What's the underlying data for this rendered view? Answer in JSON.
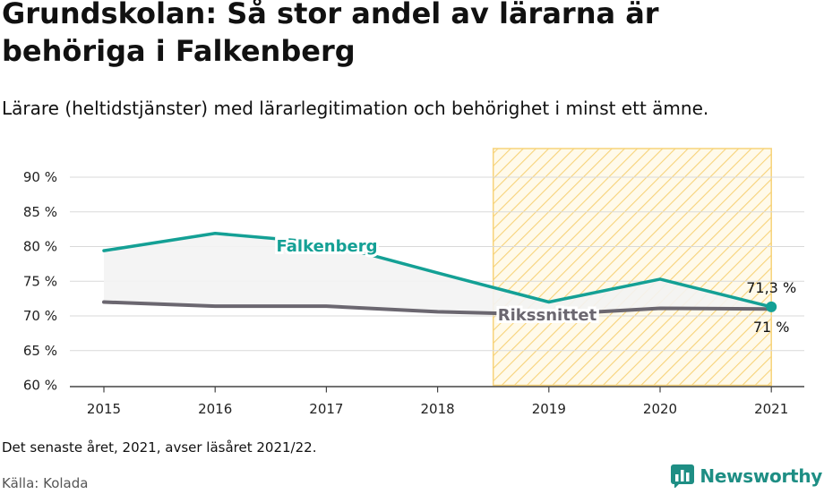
{
  "header": {
    "title": "Grundskolan: Så stor andel av lärarna är behöriga i Falkenberg",
    "subtitle": "Lärare (heltidstjänster) med lärarlegitimation och behörighet i minst ett ämne."
  },
  "footer": {
    "note": "Det senaste året, 2021, avser läsåret 2021/22.",
    "source": "Källa: Kolada",
    "brand": "Newsworthy"
  },
  "colors": {
    "falkenberg": "#14a095",
    "riksnittet": "#6b6770",
    "highlight_stripe": "#f7d37a",
    "area_fill": "#f3f3f3"
  },
  "icons": {
    "brand_logo": "bar-chart-icon"
  },
  "chart_data": {
    "type": "line",
    "categories": [
      "2015",
      "2016",
      "2017",
      "2018",
      "2019",
      "2020",
      "2021"
    ],
    "series": [
      {
        "name": "Falkenberg",
        "values": [
          79.4,
          81.9,
          80.5,
          76.2,
          72.0,
          75.3,
          71.3
        ]
      },
      {
        "name": "Rikssnittet",
        "values": [
          72.0,
          71.4,
          71.4,
          70.6,
          70.2,
          71.1,
          71.0
        ]
      }
    ],
    "y_ticks": [
      "60 %",
      "65 %",
      "70 %",
      "75 %",
      "80 %",
      "85 %",
      "90 %"
    ],
    "ylim": [
      60,
      90
    ],
    "grid": true,
    "highlight_range": [
      "2019",
      "2021"
    ],
    "end_labels": {
      "falkenberg": "71,3 %",
      "riksnittet": "71 %"
    },
    "xlabel": "",
    "ylabel": ""
  }
}
